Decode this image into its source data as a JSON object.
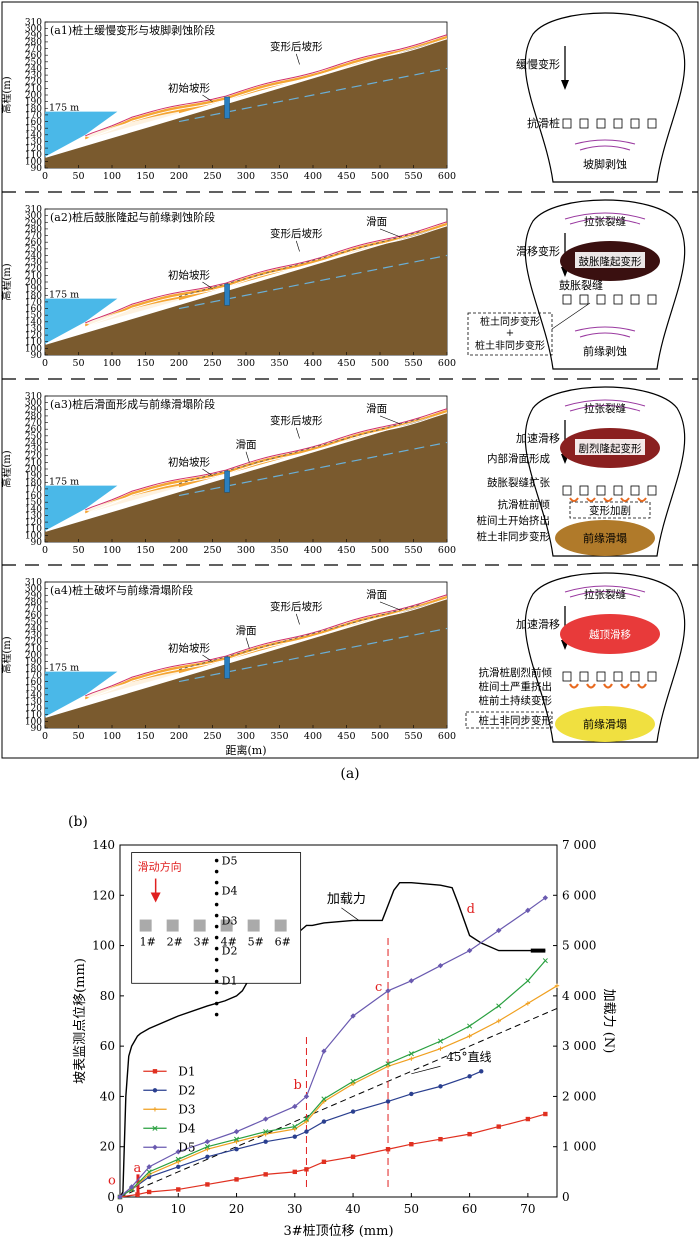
{
  "figure_a": {
    "caption": "(a)",
    "sea_level_label": "175 m",
    "y_axis_label": "高程(m)",
    "x_axis_label": "距离(m)",
    "y_ticks": [
      "310",
      "300",
      "290",
      "280",
      "270",
      "260",
      "250",
      "240",
      "230",
      "220",
      "210",
      "200",
      "190",
      "180",
      "170",
      "160",
      "150",
      "140",
      "130",
      "120",
      "110",
      "100",
      "90"
    ],
    "x_ticks": [
      "0",
      "50",
      "100",
      "150",
      "200",
      "250",
      "300",
      "350",
      "400",
      "450",
      "500",
      "550",
      "600"
    ],
    "panels": [
      {
        "title": "(a1)桩土缓慢变形与坡脚剥蚀阶段",
        "labels": {
          "initial": "初始坡形",
          "deformed": "变形后坡形",
          "slip": ""
        },
        "schematic": {
          "arrow_label": "缓慢变形",
          "pile_label": "抗滑桩",
          "bottom_label": "坡脚剥蚀"
        }
      },
      {
        "title": "(a2)桩后鼓胀隆起与前缘剥蚀阶段",
        "labels": {
          "initial": "初始坡形",
          "deformed": "变形后坡形",
          "slip": "滑面"
        },
        "schematic": {
          "top_label": "拉张裂缝",
          "arrow_label": "滑移变形",
          "ellipse_label": "鼓胀隆起变形",
          "crack_label": "鼓胀裂缝",
          "box_line1": "桩土同步变形",
          "box_plus": "+",
          "box_line2": "桩土非同步变形",
          "bottom_label": "前缘剥蚀"
        }
      },
      {
        "title": "(a3)桩后滑面形成与前缘滑塌阶段",
        "labels": {
          "initial": "初始坡形",
          "deformed": "变形后坡形",
          "slip": "滑面",
          "slip2": "滑面"
        },
        "schematic": {
          "top_label": "拉张裂缝",
          "arrow_label": "加速滑移",
          "ellipse_label": "剧烈隆起变形",
          "inner_label": "内部滑面形成",
          "crack_label": "鼓胀裂缝扩张",
          "tilt_label": "抗滑桩前倾",
          "squeeze_label": "桩间土开始挤出",
          "async_label": "桩土非同步变形",
          "box_label": "变形加剧",
          "bottom_label": "前缘滑塌"
        }
      },
      {
        "title": "(a4)桩土破坏与前缘滑塌阶段",
        "labels": {
          "initial": "初始坡形",
          "deformed": "变形后坡形",
          "slip": "滑面",
          "slip2": "滑面"
        },
        "schematic": {
          "top_label": "拉张裂缝",
          "arrow_label": "加速滑移",
          "ellipse_label": "越顶滑移",
          "tilt_label": "抗滑桩剧烈前倾",
          "squeeze_label": "桩间土严重挤出",
          "front_label": "桩前土持续变形",
          "async_label": "桩土非同步变形",
          "bottom_label": "前缘滑塌"
        }
      }
    ]
  },
  "chart_data": {
    "type": "line",
    "panel_label": "(b)",
    "xlabel": "3#桩顶位移 (mm)",
    "ylabel": "坡表监测点位移(mm)",
    "y2label": "加载力 (N)",
    "xlim": [
      0,
      75
    ],
    "ylim": [
      0,
      140
    ],
    "y2lim": [
      0,
      7000
    ],
    "x_ticks": [
      0,
      10,
      20,
      30,
      40,
      50,
      60,
      70
    ],
    "y_ticks": [
      0,
      20,
      40,
      60,
      80,
      100,
      120,
      140
    ],
    "y2_ticks": [
      "0",
      "1 000",
      "2 000",
      "3 000",
      "4 000",
      "5 000",
      "6 000",
      "7 000"
    ],
    "legend_position": "left",
    "series": [
      {
        "name": "D1",
        "color": "#e03020",
        "marker": "square",
        "x": [
          0,
          3,
          5,
          10,
          15,
          20,
          25,
          30,
          32,
          35,
          40,
          46,
          50,
          55,
          60,
          65,
          70,
          73
        ],
        "y": [
          0,
          1,
          2,
          3,
          5,
          7,
          9,
          10,
          11,
          14,
          16,
          19,
          21,
          23,
          25,
          28,
          31,
          33
        ]
      },
      {
        "name": "D2",
        "color": "#2a3f8f",
        "marker": "circle",
        "x": [
          0,
          2,
          5,
          10,
          15,
          20,
          25,
          30,
          32,
          35,
          40,
          46,
          50,
          55,
          60,
          62
        ],
        "y": [
          0,
          3,
          8,
          12,
          16,
          19,
          22,
          24,
          26,
          30,
          34,
          38,
          41,
          44,
          48,
          50
        ]
      },
      {
        "name": "D3",
        "color": "#f0a020",
        "marker": "plus",
        "x": [
          0,
          2,
          5,
          10,
          15,
          20,
          25,
          30,
          32,
          35,
          40,
          46,
          50,
          55,
          60,
          65,
          70,
          75
        ],
        "y": [
          0,
          3,
          9,
          14,
          19,
          22,
          25,
          27,
          30,
          38,
          45,
          52,
          55,
          59,
          64,
          70,
          77,
          84
        ]
      },
      {
        "name": "D4",
        "color": "#2aa040",
        "marker": "x",
        "x": [
          0,
          2,
          5,
          10,
          15,
          20,
          25,
          30,
          32,
          35,
          40,
          46,
          50,
          55,
          60,
          65,
          70,
          73
        ],
        "y": [
          0,
          3,
          10,
          15,
          20,
          23,
          26,
          28,
          31,
          39,
          46,
          53,
          57,
          62,
          68,
          76,
          86,
          94
        ]
      },
      {
        "name": "D5",
        "color": "#6a5ab0",
        "marker": "diamond",
        "x": [
          0,
          2,
          5,
          10,
          15,
          20,
          25,
          30,
          32,
          35,
          40,
          46,
          50,
          55,
          60,
          65,
          70,
          73
        ],
        "y": [
          0,
          4,
          12,
          18,
          22,
          26,
          31,
          36,
          40,
          58,
          72,
          82,
          86,
          92,
          98,
          106,
          114,
          119
        ]
      }
    ],
    "load_series": {
      "name": "加载力",
      "color": "#000000",
      "x": [
        0,
        0.5,
        1,
        1.5,
        2,
        2.5,
        3,
        3.5,
        5,
        10,
        15,
        18,
        20,
        21,
        22,
        23,
        24,
        25,
        28,
        29.5,
        30.5,
        31,
        32,
        33,
        35,
        40,
        45,
        46,
        47,
        48,
        50,
        55,
        57,
        58,
        60,
        62,
        65,
        70,
        73
      ],
      "y": [
        0,
        100,
        2000,
        2800,
        3000,
        3100,
        3200,
        3250,
        3350,
        3600,
        3800,
        3900,
        4000,
        4100,
        4300,
        4700,
        4900,
        4950,
        5000,
        5200,
        5300,
        5300,
        5400,
        5400,
        5450,
        5500,
        5500,
        5800,
        6100,
        6250,
        6250,
        6200,
        6150,
        5850,
        5200,
        5050,
        4900,
        4900,
        4900
      ]
    },
    "line_45": {
      "label": "45°直线",
      "x": [
        0,
        75
      ],
      "y": [
        0,
        75
      ]
    },
    "stage_markers": [
      {
        "label": "a",
        "x": 3
      },
      {
        "label": "b",
        "x": 32
      },
      {
        "label": "c",
        "x": 46
      },
      {
        "label": "d",
        "x": 60
      }
    ],
    "origin_label": "o",
    "load_label": "加载力",
    "inset": {
      "arrow_label": "滑动方向",
      "piles": [
        "1#",
        "2#",
        "3#",
        "4#",
        "5#",
        "6#"
      ],
      "points": [
        "D5",
        "D4",
        "D3",
        "D2",
        "D1"
      ]
    }
  }
}
